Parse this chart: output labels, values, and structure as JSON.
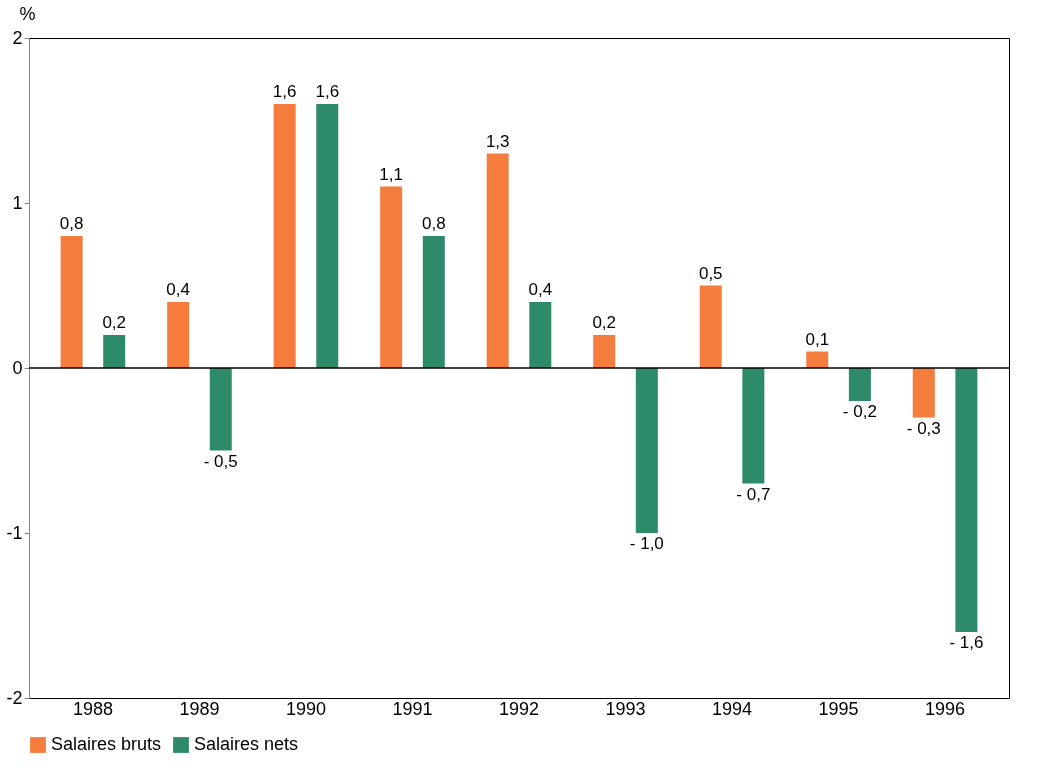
{
  "chart_data": {
    "type": "bar",
    "ylabel": "%",
    "categories": [
      "1988",
      "1989",
      "1990",
      "1991",
      "1992",
      "1993",
      "1994",
      "1995",
      "1996"
    ],
    "series": [
      {
        "name": "Salaires bruts",
        "color": "#f47c3c",
        "values": [
          0.8,
          0.4,
          1.6,
          1.1,
          1.3,
          0.2,
          0.5,
          0.1,
          -0.3
        ],
        "value_labels": [
          "0,8",
          "0,4",
          "1,6",
          "1,1",
          "1,3",
          "0,2",
          "0,5",
          "0,1",
          "- 0,3"
        ]
      },
      {
        "name": "Salaires nets",
        "color": "#2e8b6a",
        "values": [
          0.2,
          -0.5,
          1.6,
          0.8,
          0.4,
          -1.0,
          -0.7,
          -0.2,
          -1.6
        ],
        "value_labels": [
          "0,2",
          "- 0,5",
          "1,6",
          "0,8",
          "0,4",
          "- 1,0",
          "- 0,7",
          "- 0,2",
          "- 1,6"
        ]
      }
    ],
    "ylim": [
      -2,
      2
    ],
    "yticks": [
      -2,
      -1,
      0,
      1,
      2
    ],
    "ref_lines": [
      {
        "axis": "y",
        "value": 0
      }
    ],
    "legend": "bottom",
    "grid": false
  }
}
